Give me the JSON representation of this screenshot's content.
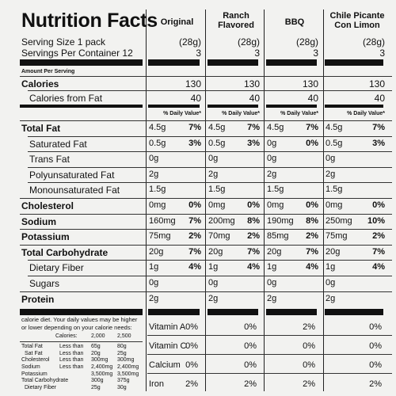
{
  "title": "Nutrition Facts",
  "columns": [
    "Original",
    "Ranch Flavored",
    "BBQ",
    "Chile Picante Con Limon"
  ],
  "serving_size_label": "Serving Size 1 pack",
  "servings_label": "Servings Per Container 12",
  "serving_size_values": [
    "(28g)",
    "(28g)",
    "(28g)",
    "(28g)"
  ],
  "servings_values": [
    "3",
    "3",
    "3",
    "3"
  ],
  "amount_per_serving": "Amount Per Serving",
  "calories_label": "Calories",
  "calories_values": [
    "130",
    "130",
    "130",
    "130"
  ],
  "calories_fat_label": "Calories from Fat",
  "calories_fat_values": [
    "40",
    "40",
    "40",
    "40"
  ],
  "dv_header": "% Daily Value*",
  "rows": [
    {
      "label": "Total Fat",
      "bold": true,
      "indent": false,
      "values": [
        [
          "4.5g",
          "7%"
        ],
        [
          "4.5g",
          "7%"
        ],
        [
          "4.5g",
          "7%"
        ],
        [
          "4.5g",
          "7%"
        ]
      ]
    },
    {
      "label": "Saturated Fat",
      "bold": false,
      "indent": true,
      "values": [
        [
          "0.5g",
          "3%"
        ],
        [
          "0.5g",
          "3%"
        ],
        [
          "0g",
          "0%"
        ],
        [
          "0.5g",
          "3%"
        ]
      ]
    },
    {
      "label": "Trans Fat",
      "bold": false,
      "indent": true,
      "values": [
        [
          "0g",
          ""
        ],
        [
          "0g",
          ""
        ],
        [
          "0g",
          ""
        ],
        [
          "0g",
          ""
        ]
      ]
    },
    {
      "label": "Polyunsaturated Fat",
      "bold": false,
      "indent": true,
      "values": [
        [
          "2g",
          ""
        ],
        [
          "2g",
          ""
        ],
        [
          "2g",
          ""
        ],
        [
          "2g",
          ""
        ]
      ]
    },
    {
      "label": "Monounsaturated Fat",
      "bold": false,
      "indent": true,
      "values": [
        [
          "1.5g",
          ""
        ],
        [
          "1.5g",
          ""
        ],
        [
          "1.5g",
          ""
        ],
        [
          "1.5g",
          ""
        ]
      ]
    },
    {
      "label": "Cholesterol",
      "bold": true,
      "indent": false,
      "values": [
        [
          "0mg",
          "0%"
        ],
        [
          "0mg",
          "0%"
        ],
        [
          "0mg",
          "0%"
        ],
        [
          "0mg",
          "0%"
        ]
      ]
    },
    {
      "label": "Sodium",
      "bold": true,
      "indent": false,
      "values": [
        [
          "160mg",
          "7%"
        ],
        [
          "200mg",
          "8%"
        ],
        [
          "190mg",
          "8%"
        ],
        [
          "250mg",
          "10%"
        ]
      ]
    },
    {
      "label": "Potassium",
      "bold": true,
      "indent": false,
      "values": [
        [
          "75mg",
          "2%"
        ],
        [
          "70mg",
          "2%"
        ],
        [
          "85mg",
          "2%"
        ],
        [
          "75mg",
          "2%"
        ]
      ]
    },
    {
      "label": "Total Carbohydrate",
      "bold": true,
      "indent": false,
      "values": [
        [
          "20g",
          "7%"
        ],
        [
          "20g",
          "7%"
        ],
        [
          "20g",
          "7%"
        ],
        [
          "20g",
          "7%"
        ]
      ]
    },
    {
      "label": "Dietary Fiber",
      "bold": false,
      "indent": true,
      "values": [
        [
          "1g",
          "4%"
        ],
        [
          "1g",
          "4%"
        ],
        [
          "1g",
          "4%"
        ],
        [
          "1g",
          "4%"
        ]
      ]
    },
    {
      "label": "Sugars",
      "bold": false,
      "indent": true,
      "values": [
        [
          "0g",
          ""
        ],
        [
          "0g",
          ""
        ],
        [
          "0g",
          ""
        ],
        [
          "0g",
          ""
        ]
      ]
    },
    {
      "label": "Protein",
      "bold": true,
      "indent": false,
      "values": [
        [
          "2g",
          ""
        ],
        [
          "2g",
          ""
        ],
        [
          "2g",
          ""
        ],
        [
          "2g",
          ""
        ]
      ]
    }
  ],
  "vitamins": [
    {
      "label": "Vitamin A",
      "values": [
        "0%",
        "0%",
        "2%",
        "0%"
      ]
    },
    {
      "label": "Vitamin C",
      "values": [
        "0%",
        "0%",
        "0%",
        "0%"
      ]
    },
    {
      "label": "Calcium",
      "values": [
        "0%",
        "0%",
        "0%",
        "0%"
      ]
    },
    {
      "label": "Iron",
      "values": [
        "2%",
        "2%",
        "2%",
        "2%"
      ]
    }
  ],
  "footnote_lines": [
    "*Percent Daily Values are based on a 2,000",
    "calorie diet. Your daily values may be higher",
    "or lower depending on your calorie needs:"
  ],
  "footnote_table": {
    "header": [
      "Calories:",
      "2,000",
      "2,500"
    ],
    "rows": [
      [
        "Total Fat",
        "Less than",
        "65g",
        "80g"
      ],
      [
        "Sat Fat",
        "Less than",
        "20g",
        "25g"
      ],
      [
        "Cholesterol",
        "Less than",
        "300mg",
        "300mg"
      ],
      [
        "Sodium",
        "Less than",
        "2,400mg",
        "2,400mg"
      ],
      [
        "Potassium",
        "",
        "3,500mg",
        "3,500mg"
      ],
      [
        "Total Carbohydrate",
        "",
        "300g",
        "375g"
      ],
      [
        "Dietary Fiber",
        "",
        "25g",
        "30g"
      ]
    ]
  }
}
